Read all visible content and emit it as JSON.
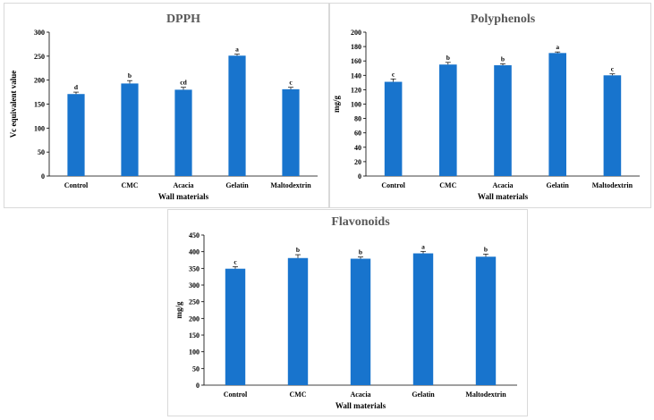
{
  "chart_data": [
    {
      "type": "bar",
      "title": "DPPH",
      "xlabel": "Wall materials",
      "ylabel": "Vc equivalent value",
      "ylim": [
        0,
        300
      ],
      "yticks": [
        0,
        50,
        100,
        150,
        200,
        250,
        300
      ],
      "categories": [
        "Control",
        "CMC",
        "Acacia",
        "Gelatin",
        "Maltodextrin"
      ],
      "values": [
        171,
        193,
        180,
        251,
        181
      ],
      "errors": [
        4,
        6,
        5,
        3,
        4
      ],
      "significance": [
        "d",
        "b",
        "cd",
        "a",
        "c"
      ],
      "color": "#1874cd"
    },
    {
      "type": "bar",
      "title": "Polyphenols",
      "xlabel": "Wall materials",
      "ylabel": "mg/g",
      "ylim": [
        0,
        200
      ],
      "yticks": [
        0,
        20,
        40,
        60,
        80,
        100,
        120,
        140,
        160,
        180,
        200
      ],
      "categories": [
        "Control",
        "CMC",
        "Acacia",
        "Gelatin",
        "Maltodextrin"
      ],
      "values": [
        131,
        155,
        154,
        171,
        140
      ],
      "errors": [
        4,
        3,
        2,
        1.5,
        2
      ],
      "significance": [
        "c",
        "b",
        "b",
        "a",
        "c"
      ],
      "color": "#1874cd"
    },
    {
      "type": "bar",
      "title": "Flavonoids",
      "xlabel": "Wall materials",
      "ylabel": "mg/g",
      "ylim": [
        0,
        450
      ],
      "yticks": [
        0,
        50,
        100,
        150,
        200,
        250,
        300,
        350,
        400,
        450
      ],
      "categories": [
        "Control",
        "CMC",
        "Acacia",
        "Gelatin",
        "Maltodextrin"
      ],
      "values": [
        349,
        381,
        379,
        395,
        385
      ],
      "errors": [
        6,
        10,
        5,
        6,
        8
      ],
      "significance": [
        "c",
        "b",
        "b",
        "a",
        "b"
      ],
      "color": "#1874cd"
    }
  ]
}
